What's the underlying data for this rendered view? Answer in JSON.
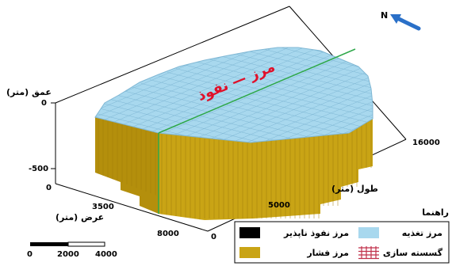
{
  "axes": {
    "depth": {
      "label": "عمق (متر)",
      "ticks": [
        "0",
        "-500"
      ]
    },
    "length": {
      "label": "طول (متر)",
      "ticks": [
        "0",
        "5000",
        "16000"
      ]
    },
    "width": {
      "label": "عرض (متر)",
      "ticks": [
        "0",
        "3500",
        "8000"
      ]
    }
  },
  "annotation": "مرز — نفوذ",
  "north": {
    "label": "N"
  },
  "scale_bar": {
    "ticks": [
      "0",
      "2000",
      "4000"
    ]
  },
  "legend": {
    "title": "راهنما",
    "items": [
      {
        "label": "مرز تغذیه",
        "color": "#a8d8ee",
        "icon": "swatch-fill"
      },
      {
        "label": "مرز نفوذ ناپذیر",
        "color": "#000000",
        "icon": "swatch-fill"
      },
      {
        "label": "گسسته سازی",
        "color": "#c0304a",
        "icon": "grid-hash"
      },
      {
        "label": "مرز فشار",
        "color": "#c9a415",
        "icon": "swatch-fill"
      }
    ]
  },
  "colors": {
    "top": "#a8d8ee",
    "top_grid": "#7fb7d4",
    "side": "#c9a415",
    "side_dark": "#b48f0c",
    "side_grid": "#a07e08",
    "red": "#e0102a",
    "green": "#2fa84a",
    "arrow": "#2a70c8"
  }
}
